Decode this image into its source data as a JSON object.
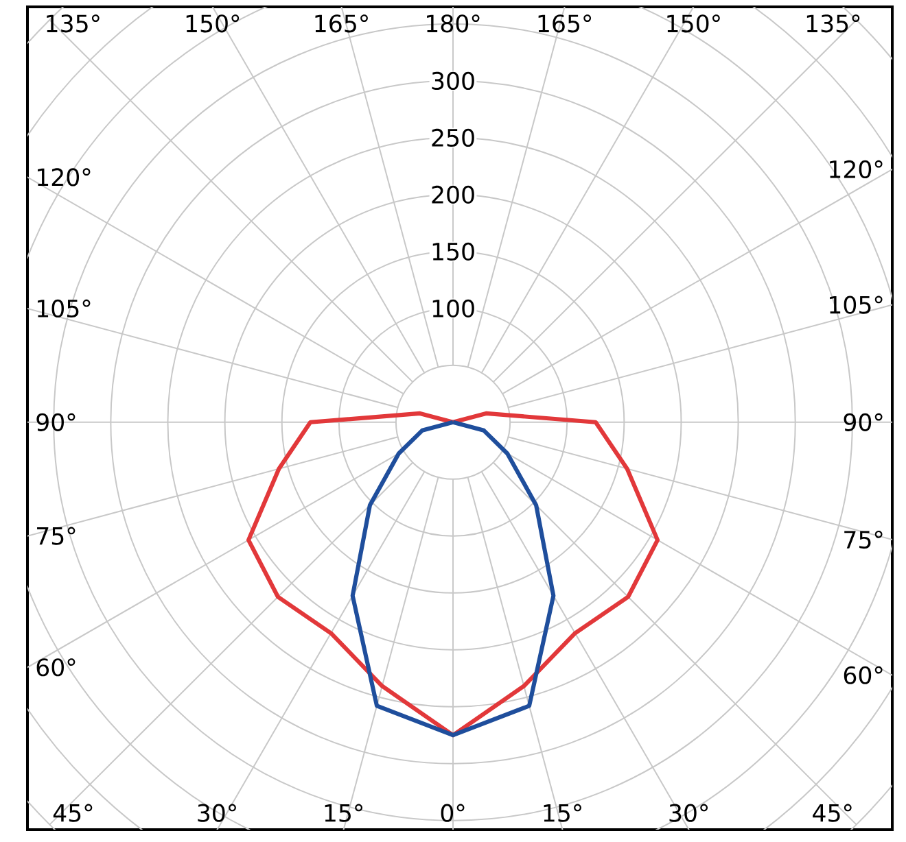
{
  "chart_data": {
    "type": "radar",
    "categories": [
      "180°",
      "165°",
      "150°",
      "135°",
      "120°",
      "105°",
      "90°",
      "75°",
      "60°",
      "45°",
      "30°",
      "15°",
      "0°",
      "15°",
      "30°",
      "45°",
      "60°",
      "75°",
      "90°",
      "105°",
      "120°",
      "135°",
      "150°",
      "165°"
    ],
    "series": [
      {
        "color": "#e2383a",
        "values": [
          0,
          0,
          0,
          0,
          0,
          30,
          125,
          158,
          207,
          217,
          214,
          240,
          275,
          240,
          214,
          217,
          207,
          158,
          125,
          30,
          0,
          0,
          0,
          0
        ]
      },
      {
        "color": "#1f4e9c",
        "values": [
          0,
          0,
          0,
          0,
          0,
          0,
          0,
          28,
          55,
          103,
          176,
          258,
          275,
          258,
          176,
          103,
          55,
          28,
          0,
          0,
          0,
          0,
          0,
          0
        ]
      }
    ],
    "ylim": [
      0,
      500
    ],
    "yticks": [
      100,
      150,
      200,
      250,
      300
    ],
    "grid": true
  }
}
